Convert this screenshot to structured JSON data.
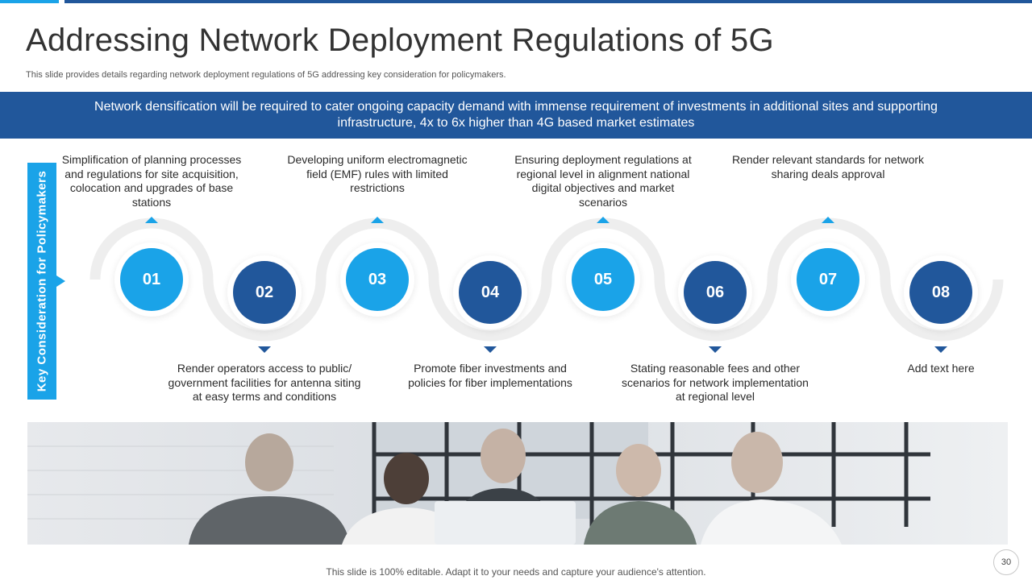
{
  "slide": {
    "title": "Addressing Network Deployment Regulations of 5G",
    "subtitle": "This slide provides details regarding network deployment regulations of 5G addressing key consideration for policymakers.",
    "banner": "Network densification will be required to cater ongoing capacity demand with immense requirement of investments in additional sites and supporting infrastructure,  4x to 6x higher than 4G based market estimates",
    "side_label": "Key Consideration for Policymakers",
    "footer": "This slide is 100% editable. Adapt it to your needs and capture your audience's attention.",
    "page_number": "30"
  },
  "colors": {
    "light_blue": "#1aa3e8",
    "dark_blue": "#21579b",
    "wave_gray": "#eeeeee"
  },
  "steps": [
    {
      "number": "01",
      "text": "Simplification of planning processes and regulations for site acquisition, colocation and upgrades of base stations"
    },
    {
      "number": "02",
      "text": "Render operators access to public/ government facilities for antenna siting at easy terms and conditions"
    },
    {
      "number": "03",
      "text": "Developing uniform electromagnetic field (EMF) rules with limited restrictions"
    },
    {
      "number": "04",
      "text": "Promote fiber investments and policies for fiber implementations"
    },
    {
      "number": "05",
      "text": "Ensuring deployment regulations at regional level in alignment national digital objectives and market scenarios"
    },
    {
      "number": "06",
      "text": "Stating reasonable fees and other scenarios for network implementation at regional level"
    },
    {
      "number": "07",
      "text": "Render relevant standards for network sharing deals approval"
    },
    {
      "number": "08",
      "text": "Add text here"
    }
  ],
  "image": {
    "description_icon": "business-team-meeting-photo"
  }
}
